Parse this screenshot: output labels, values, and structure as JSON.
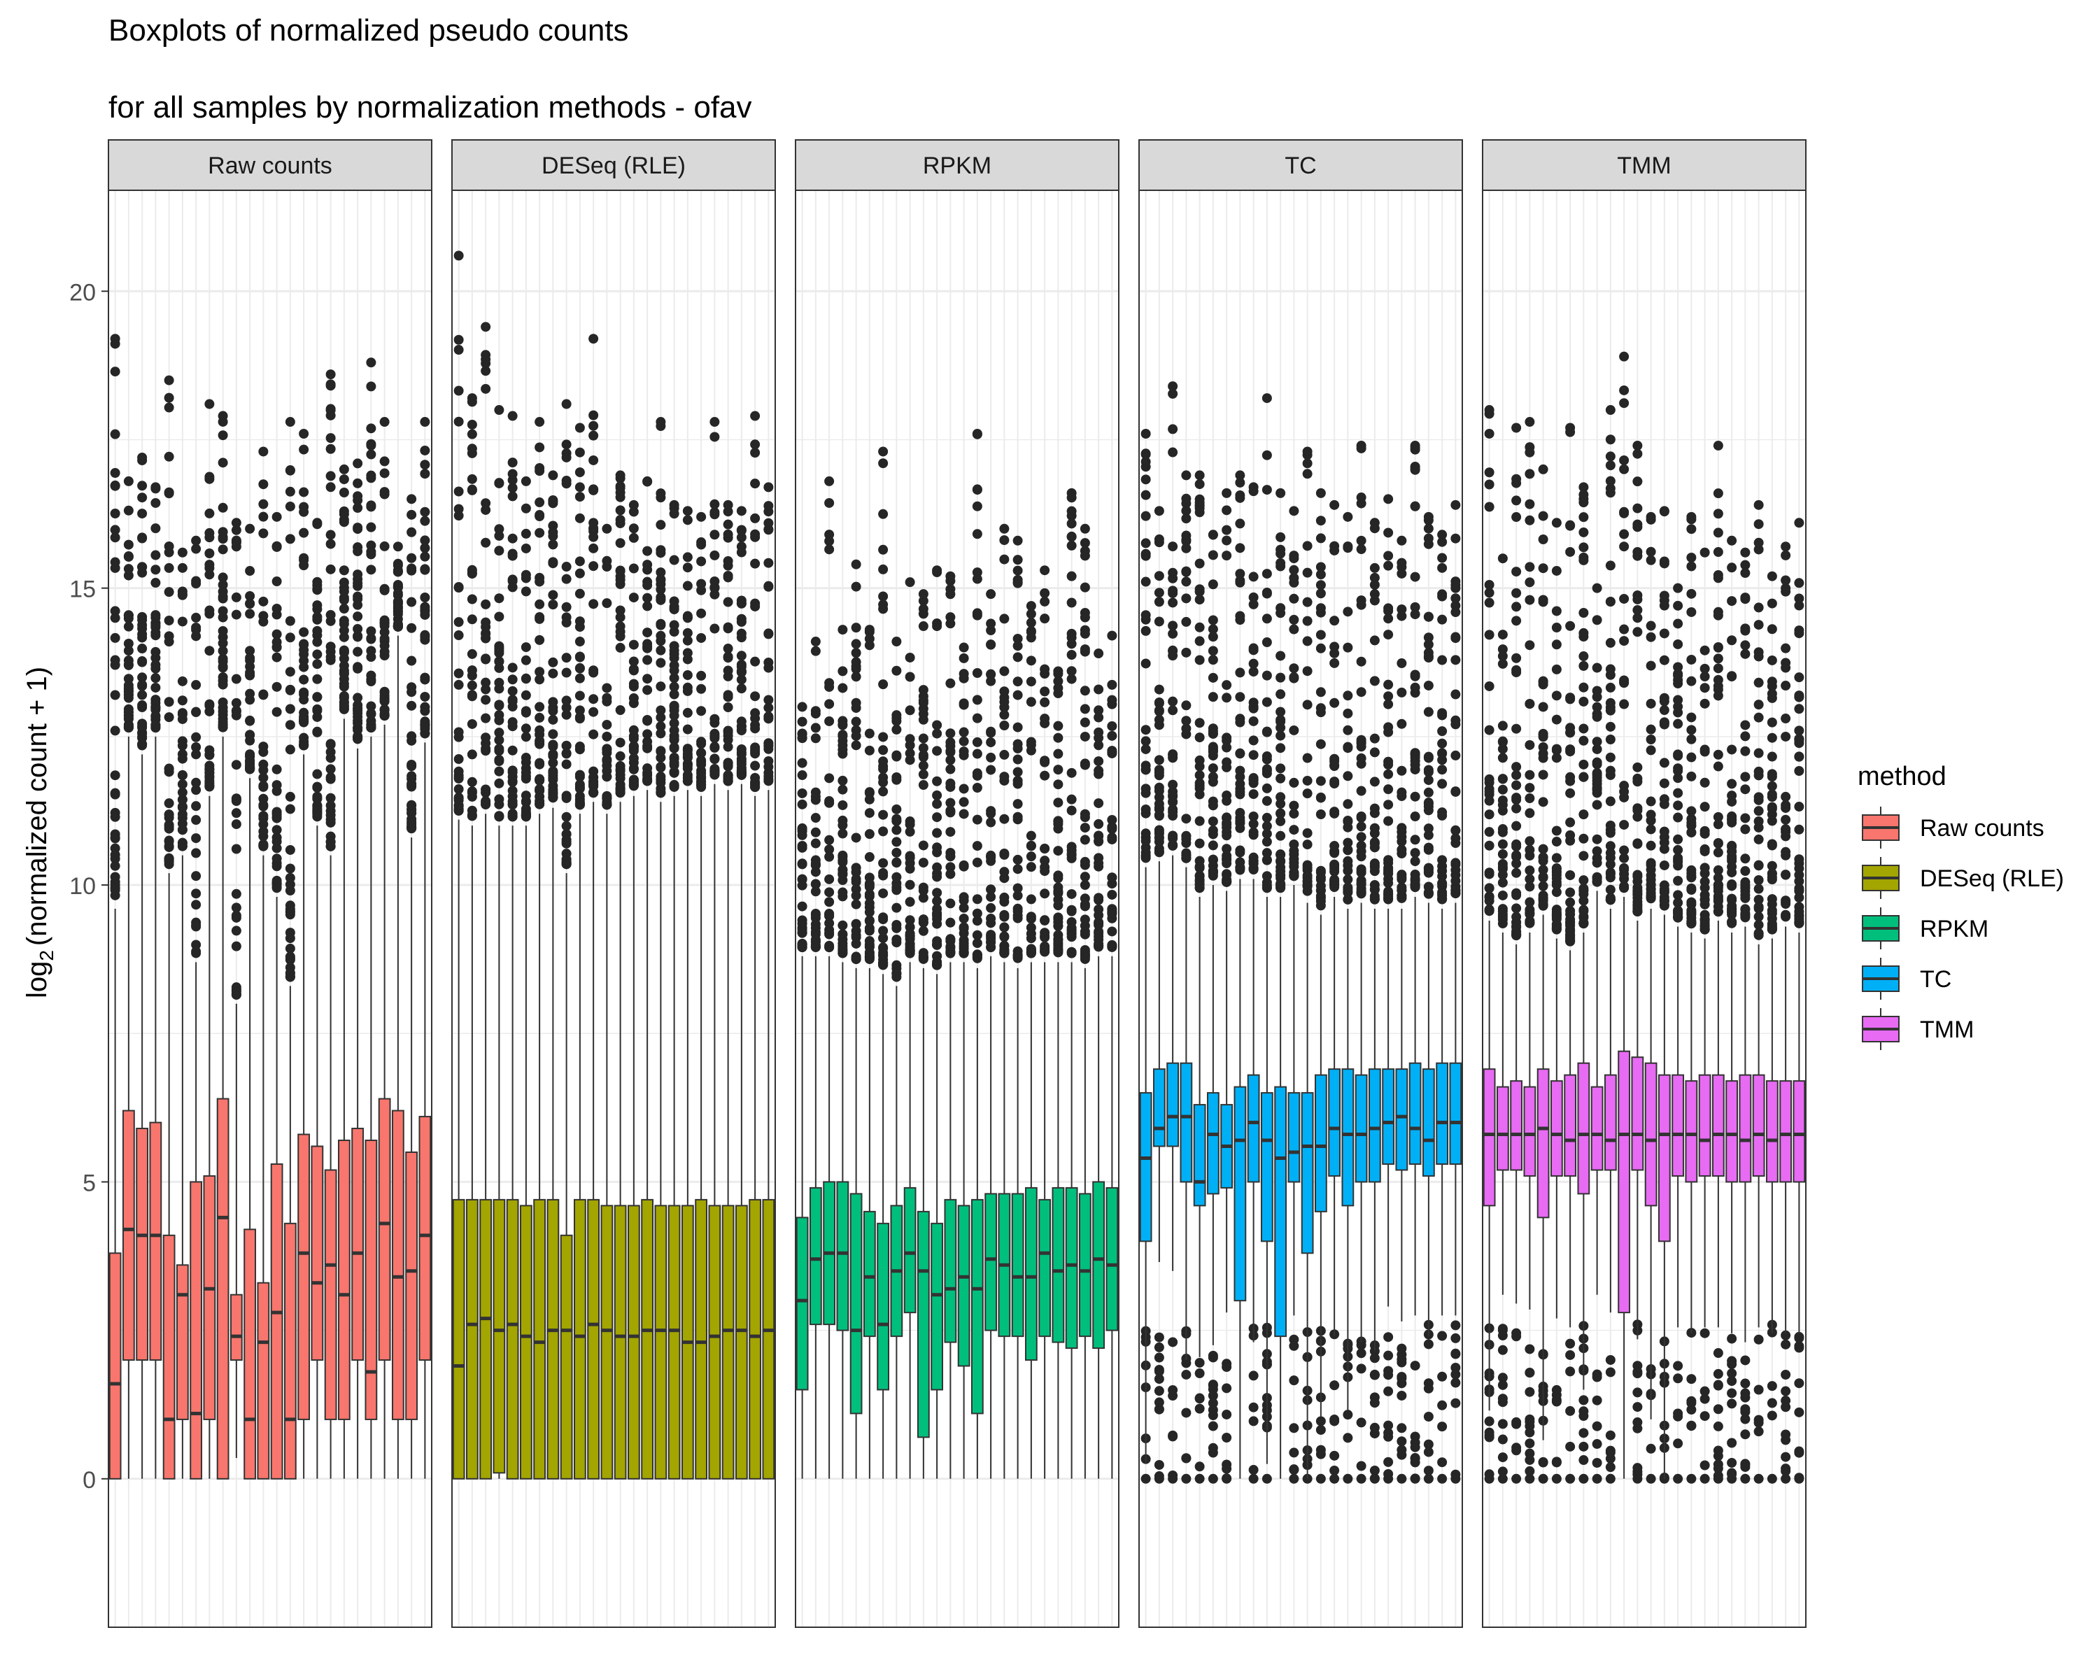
{
  "chart_data": {
    "type": "boxplot",
    "title": "Boxplots of normalized pseudo counts",
    "subtitle": "for all samples by normalization methods - ofav",
    "ylabel": "log2(normalized count + 1)",
    "ylabel_parts": {
      "base": "log",
      "subscript": "2",
      "rest": "(normalized count + 1)"
    },
    "ylim": [
      -2.5,
      21.7
    ],
    "yticks": [
      0,
      5,
      10,
      15,
      20
    ],
    "grid": true,
    "facets": [
      "Raw counts",
      "DESeq (RLE)",
      "RPKM",
      "TC",
      "TMM"
    ],
    "samples_per_facet": 24,
    "legend": {
      "title": "method",
      "position": "right",
      "entries": [
        "Raw counts",
        "DESeq (RLE)",
        "RPKM",
        "TC",
        "TMM"
      ]
    },
    "colors": {
      "Raw counts": "#F8766D",
      "DESeq (RLE)": "#A3A500",
      "RPKM": "#00BF7D",
      "TC": "#00B0F6",
      "TMM": "#E76BF3",
      "outlier": "#262626",
      "strip_bg": "#d9d9d9",
      "grid": "#ebebeb"
    },
    "series": [
      {
        "name": "Raw counts",
        "q1": [
          0,
          2,
          2,
          2,
          0,
          1,
          0,
          1,
          0,
          2,
          0,
          0,
          0,
          0,
          1,
          2,
          1,
          1,
          2,
          1,
          2,
          1,
          1,
          2
        ],
        "median": [
          1.6,
          4.2,
          4.1,
          4.1,
          1.0,
          3.1,
          1.1,
          3.2,
          4.4,
          2.4,
          1.0,
          2.3,
          2.8,
          1.0,
          3.8,
          3.3,
          3.6,
          3.1,
          3.8,
          1.8,
          4.3,
          3.4,
          3.5,
          4.1
        ],
        "q3": [
          3.8,
          6.2,
          5.9,
          6.0,
          4.1,
          3.6,
          5.0,
          5.1,
          6.4,
          3.1,
          4.2,
          3.3,
          5.3,
          4.3,
          5.8,
          5.6,
          5.2,
          5.7,
          5.9,
          5.7,
          6.4,
          6.2,
          5.5,
          6.1
        ],
        "whisker_high": [
          9.6,
          12.5,
          12.2,
          12.5,
          10.2,
          10.5,
          8.7,
          11.5,
          12.5,
          8.0,
          11.8,
          10.5,
          9.8,
          8.3,
          12.2,
          11.0,
          10.5,
          12.8,
          12.3,
          12.5,
          12.7,
          14.2,
          10.8,
          12.4
        ],
        "outlier_max": [
          19.2,
          16.8,
          17.2,
          16.7,
          18.5,
          15.6,
          15.8,
          18.1,
          17.9,
          16.1,
          16.0,
          17.3,
          16.2,
          17.8,
          17.6,
          16.1,
          18.6,
          17.0,
          17.1,
          18.8,
          17.8,
          15.7,
          16.5,
          17.8
        ]
      },
      {
        "name": "DESeq (RLE)",
        "q1": [
          0,
          0,
          0,
          0.1,
          0,
          0,
          0,
          0,
          0,
          0,
          0,
          0,
          0,
          0,
          0,
          0,
          0,
          0,
          0,
          0,
          0,
          0,
          0,
          0
        ],
        "median": [
          1.9,
          2.6,
          2.7,
          2.5,
          2.6,
          2.4,
          2.3,
          2.5,
          2.5,
          2.4,
          2.6,
          2.5,
          2.4,
          2.4,
          2.5,
          2.5,
          2.5,
          2.3,
          2.3,
          2.4,
          2.5,
          2.5,
          2.4,
          2.5
        ],
        "q3": [
          4.7,
          4.7,
          4.7,
          4.7,
          4.7,
          4.6,
          4.7,
          4.7,
          4.1,
          4.7,
          4.7,
          4.6,
          4.6,
          4.6,
          4.7,
          4.6,
          4.6,
          4.6,
          4.7,
          4.6,
          4.6,
          4.6,
          4.7,
          4.7
        ],
        "whisker_high": [
          11.1,
          11.0,
          11.2,
          11.0,
          11.0,
          11.0,
          11.2,
          11.3,
          10.2,
          11.2,
          11.4,
          11.2,
          11.4,
          11.5,
          11.6,
          11.4,
          11.5,
          11.6,
          11.5,
          11.7,
          11.6,
          11.7,
          11.5,
          11.6
        ],
        "outlier_max": [
          20.6,
          18.2,
          19.4,
          18.0,
          17.9,
          16.8,
          17.8,
          16.9,
          18.1,
          17.7,
          19.2,
          16.0,
          16.9,
          16.4,
          16.8,
          17.8,
          16.4,
          16.3,
          16.2,
          17.8,
          16.4,
          16.3,
          17.9,
          16.7
        ]
      },
      {
        "name": "RPKM",
        "q1": [
          1.5,
          2.6,
          2.6,
          2.5,
          1.1,
          2.4,
          1.5,
          2.4,
          2.8,
          0.7,
          1.5,
          2.3,
          1.9,
          1.1,
          2.5,
          2.4,
          2.4,
          2.0,
          2.4,
          2.3,
          2.2,
          2.4,
          2.2,
          2.5
        ],
        "median": [
          3.0,
          3.7,
          3.8,
          3.8,
          2.5,
          3.4,
          2.6,
          3.5,
          3.8,
          3.5,
          3.1,
          3.2,
          3.4,
          3.2,
          3.7,
          3.6,
          3.4,
          3.4,
          3.8,
          3.5,
          3.6,
          3.5,
          3.7,
          3.6
        ],
        "q3": [
          4.4,
          4.9,
          5.0,
          5.0,
          4.8,
          4.5,
          4.3,
          4.6,
          4.9,
          4.5,
          4.3,
          4.7,
          4.6,
          4.7,
          4.8,
          4.8,
          4.8,
          4.9,
          4.7,
          4.9,
          4.9,
          4.8,
          5.0,
          4.9
        ],
        "whisker_high": [
          8.8,
          8.8,
          8.8,
          8.7,
          8.6,
          8.6,
          8.5,
          8.3,
          8.7,
          8.6,
          8.5,
          8.7,
          8.7,
          8.6,
          8.8,
          8.7,
          8.6,
          8.7,
          8.7,
          8.7,
          8.7,
          8.6,
          8.8,
          8.8
        ],
        "outlier_max": [
          13.0,
          14.1,
          16.8,
          14.3,
          15.4,
          14.3,
          17.3,
          14.1,
          15.1,
          14.9,
          15.3,
          15.2,
          14.0,
          17.6,
          14.9,
          16.0,
          15.8,
          14.7,
          15.3,
          13.6,
          16.6,
          16.0,
          13.9,
          14.2
        ]
      },
      {
        "name": "TC",
        "q1": [
          4.0,
          5.6,
          5.6,
          5.0,
          4.6,
          4.8,
          4.9,
          3.0,
          5.0,
          4.0,
          2.4,
          5.0,
          3.8,
          4.5,
          5.1,
          4.6,
          5.0,
          5.0,
          5.3,
          5.2,
          5.3,
          5.1,
          5.3,
          5.3
        ],
        "median": [
          5.4,
          5.9,
          6.1,
          6.1,
          5.0,
          5.8,
          5.6,
          5.7,
          6.0,
          5.7,
          5.4,
          5.5,
          5.6,
          5.6,
          5.9,
          5.8,
          5.8,
          5.9,
          6.0,
          6.1,
          5.9,
          5.7,
          6.0,
          6.0
        ],
        "q3": [
          6.5,
          6.9,
          7.0,
          7.0,
          6.3,
          6.5,
          6.3,
          6.6,
          6.8,
          6.5,
          6.6,
          6.5,
          6.5,
          6.8,
          6.9,
          6.9,
          6.8,
          6.9,
          6.9,
          6.9,
          7.0,
          6.9,
          7.0,
          7.0
        ],
        "whisker_high": [
          10.3,
          10.4,
          10.5,
          10.3,
          9.8,
          10.0,
          9.9,
          10.1,
          10.1,
          9.8,
          9.8,
          10.0,
          9.7,
          9.5,
          9.8,
          9.6,
          9.7,
          9.6,
          9.6,
          9.6,
          9.8,
          9.7,
          9.6,
          9.7
        ],
        "outlier_max": [
          17.6,
          16.3,
          18.4,
          16.9,
          16.9,
          15.9,
          16.6,
          16.9,
          16.7,
          18.2,
          16.6,
          16.3,
          17.3,
          16.6,
          16.4,
          16.2,
          17.4,
          16.1,
          16.5,
          15.8,
          17.4,
          16.2,
          15.9,
          16.4
        ]
      },
      {
        "name": "TMM",
        "q1": [
          4.6,
          5.2,
          5.2,
          5.1,
          4.4,
          5.1,
          5.1,
          4.8,
          5.2,
          5.2,
          2.8,
          5.2,
          4.6,
          4.0,
          5.1,
          5.0,
          5.1,
          5.1,
          5.0,
          5.0,
          5.1,
          5.0,
          5.0,
          5.0
        ],
        "median": [
          5.8,
          5.8,
          5.8,
          5.8,
          5.9,
          5.8,
          5.7,
          5.8,
          5.8,
          5.7,
          5.8,
          5.8,
          5.7,
          5.8,
          5.8,
          5.8,
          5.7,
          5.8,
          5.8,
          5.7,
          5.8,
          5.7,
          5.8,
          5.8
        ],
        "q3": [
          6.9,
          6.6,
          6.7,
          6.6,
          6.9,
          6.7,
          6.8,
          7.0,
          6.6,
          6.8,
          7.2,
          7.1,
          7.0,
          6.8,
          6.8,
          6.7,
          6.8,
          6.8,
          6.7,
          6.8,
          6.8,
          6.7,
          6.7,
          6.7
        ],
        "whisker_high": [
          9.4,
          9.2,
          9.0,
          9.2,
          9.5,
          9.1,
          8.9,
          9.2,
          9.9,
          9.6,
          9.8,
          9.4,
          9.6,
          9.5,
          9.3,
          9.2,
          9.1,
          9.4,
          9.2,
          9.3,
          9.0,
          9.1,
          9.3,
          9.2
        ],
        "outlier_max": [
          18.0,
          15.5,
          17.7,
          17.8,
          17.0,
          16.1,
          17.7,
          16.7,
          15.0,
          18.0,
          18.9,
          17.4,
          16.2,
          16.3,
          15.0,
          16.2,
          15.6,
          17.4,
          15.8,
          15.6,
          16.4,
          15.2,
          15.7,
          16.1
        ]
      }
    ]
  }
}
